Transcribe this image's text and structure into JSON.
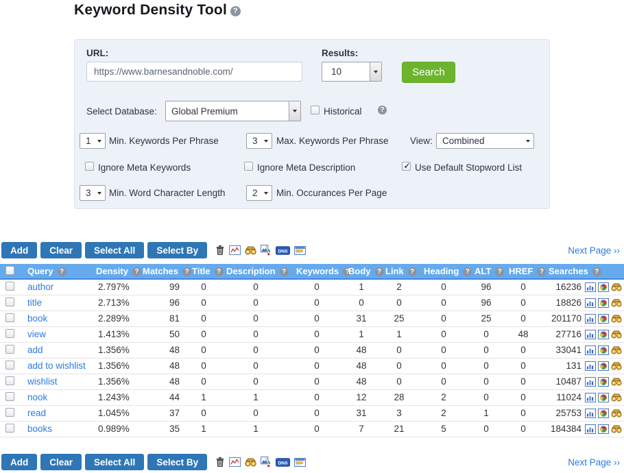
{
  "page": {
    "title": "Keyword Density Tool"
  },
  "form": {
    "url_label": "URL:",
    "url_value": "https://www.barnesandnoble.com/",
    "results_label": "Results:",
    "results_value": "10",
    "search_button": "Search",
    "database_label": "Select Database:",
    "database_value": "Global Premium",
    "historical_label": "Historical",
    "min_keywords_value": "1",
    "min_keywords_label": "Min. Keywords Per Phrase",
    "max_keywords_value": "3",
    "max_keywords_label": "Max. Keywords Per Phrase",
    "view_label": "View:",
    "view_value": "Combined",
    "ignore_meta_keywords_label": "Ignore Meta Keywords",
    "ignore_meta_description_label": "Ignore Meta Description",
    "use_default_stopword_label": "Use Default Stopword List",
    "min_char_value": "3",
    "min_char_label": "Min. Word Character Length",
    "min_occur_value": "2",
    "min_occur_label": "Min. Occurances Per Page",
    "checkboxes": {
      "historical": false,
      "ignore_meta_keywords": false,
      "ignore_meta_description": false,
      "use_default_stopword": true
    }
  },
  "toolbar": {
    "add": "Add",
    "clear": "Clear",
    "select_all": "Select All",
    "select_by": "Select By",
    "next_page": "Next Page ››",
    "icons": [
      "trash-icon",
      "line-chart-icon",
      "binoculars-icon",
      "image-export-icon",
      "dns-icon",
      "window-list-icon"
    ]
  },
  "table": {
    "header_keys": [
      "query",
      "density",
      "matches",
      "title",
      "description",
      "keywords",
      "body",
      "link",
      "heading",
      "alt",
      "href",
      "searches"
    ],
    "headers": [
      "Query",
      "Density",
      "Matches",
      "Title",
      "Description",
      "Keywords",
      "Body",
      "Link",
      "Heading",
      "ALT",
      "HREF",
      "Searches"
    ],
    "row_icons": [
      "bar-chart-icon",
      "pie-chart-icon",
      "binoculars-icon"
    ],
    "rows": [
      {
        "query": "author",
        "density": "2.797%",
        "matches": "99",
        "title": "0",
        "description": "0",
        "keywords": "0",
        "body": "1",
        "link": "2",
        "heading": "0",
        "alt": "96",
        "href": "0",
        "searches": "16236"
      },
      {
        "query": "title",
        "density": "2.713%",
        "matches": "96",
        "title": "0",
        "description": "0",
        "keywords": "0",
        "body": "0",
        "link": "0",
        "heading": "0",
        "alt": "96",
        "href": "0",
        "searches": "18826"
      },
      {
        "query": "book",
        "density": "2.289%",
        "matches": "81",
        "title": "0",
        "description": "0",
        "keywords": "0",
        "body": "31",
        "link": "25",
        "heading": "0",
        "alt": "25",
        "href": "0",
        "searches": "201170"
      },
      {
        "query": "view",
        "density": "1.413%",
        "matches": "50",
        "title": "0",
        "description": "0",
        "keywords": "0",
        "body": "1",
        "link": "1",
        "heading": "0",
        "alt": "0",
        "href": "48",
        "searches": "27716"
      },
      {
        "query": "add",
        "density": "1.356%",
        "matches": "48",
        "title": "0",
        "description": "0",
        "keywords": "0",
        "body": "48",
        "link": "0",
        "heading": "0",
        "alt": "0",
        "href": "0",
        "searches": "33041"
      },
      {
        "query": "add to wishlist",
        "density": "1.356%",
        "matches": "48",
        "title": "0",
        "description": "0",
        "keywords": "0",
        "body": "48",
        "link": "0",
        "heading": "0",
        "alt": "0",
        "href": "0",
        "searches": "131"
      },
      {
        "query": "wishlist",
        "density": "1.356%",
        "matches": "48",
        "title": "0",
        "description": "0",
        "keywords": "0",
        "body": "48",
        "link": "0",
        "heading": "0",
        "alt": "0",
        "href": "0",
        "searches": "10487"
      },
      {
        "query": "nook",
        "density": "1.243%",
        "matches": "44",
        "title": "1",
        "description": "1",
        "keywords": "0",
        "body": "12",
        "link": "28",
        "heading": "2",
        "alt": "0",
        "href": "0",
        "searches": "11024"
      },
      {
        "query": "read",
        "density": "1.045%",
        "matches": "37",
        "title": "0",
        "description": "0",
        "keywords": "0",
        "body": "31",
        "link": "3",
        "heading": "2",
        "alt": "1",
        "href": "0",
        "searches": "25753"
      },
      {
        "query": "books",
        "density": "0.989%",
        "matches": "35",
        "title": "1",
        "description": "1",
        "keywords": "0",
        "body": "7",
        "link": "21",
        "heading": "5",
        "alt": "0",
        "href": "0",
        "searches": "184384"
      }
    ]
  },
  "colors": {
    "header_blue": "#66aaee",
    "button_blue": "#2e76b6",
    "search_green": "#6cb42d",
    "link_blue": "#2b7cdf",
    "panel_bg": "#edf2f8"
  }
}
